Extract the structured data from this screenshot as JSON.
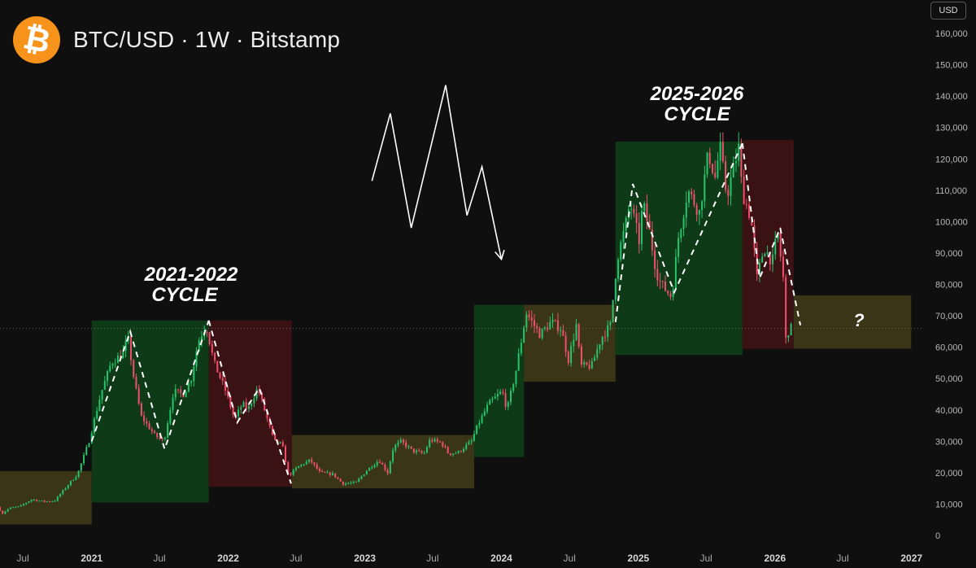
{
  "header": {
    "title": "BTC/USD · 1W · Bitstamp",
    "logo_symbol": "₿",
    "logo_icon": "bitcoin-icon",
    "currency_label": "USD"
  },
  "colors": {
    "background": "#0f0f0f",
    "bullish": "#26c46b",
    "bearish": "#f0506e",
    "bull_zone": "#0f3a18",
    "bear_zone": "#3a1214",
    "range_zone": "#3a3516",
    "brand": "#f7931a"
  },
  "chart_data": {
    "type": "candlestick",
    "title": "BTC/USD · 1W · Bitstamp",
    "y_axis": {
      "min": 0,
      "max": 160000,
      "currency": "USD",
      "ticks": [
        {
          "value": 160000,
          "label": "160,000"
        },
        {
          "value": 150000,
          "label": "150,000"
        },
        {
          "value": 140000,
          "label": "140,000"
        },
        {
          "value": 130000,
          "label": "130,000"
        },
        {
          "value": 120000,
          "label": "120,000"
        },
        {
          "value": 110000,
          "label": "110,000"
        },
        {
          "value": 100000,
          "label": "100,000"
        },
        {
          "value": 90000,
          "label": "90,000"
        },
        {
          "value": 80000,
          "label": "80,000"
        },
        {
          "value": 70000,
          "label": "70,000"
        },
        {
          "value": 60000,
          "label": "60,000"
        },
        {
          "value": 50000,
          "label": "50,000"
        },
        {
          "value": 40000,
          "label": "40,000"
        },
        {
          "value": 30000,
          "label": "30,000"
        },
        {
          "value": 20000,
          "label": "20,000"
        },
        {
          "value": 10000,
          "label": "10,000"
        },
        {
          "value": 0,
          "label": "0"
        }
      ]
    },
    "x_axis": {
      "min": "2020-05",
      "max": "2027-02",
      "ticks": [
        {
          "date": "2020-07",
          "label": "Jul"
        },
        {
          "date": "2021-01",
          "label": "2021"
        },
        {
          "date": "2021-07",
          "label": "Jul"
        },
        {
          "date": "2022-01",
          "label": "2022"
        },
        {
          "date": "2022-07",
          "label": "Jul"
        },
        {
          "date": "2023-01",
          "label": "2023"
        },
        {
          "date": "2023-07",
          "label": "Jul"
        },
        {
          "date": "2024-01",
          "label": "2024"
        },
        {
          "date": "2024-07",
          "label": "Jul"
        },
        {
          "date": "2025-01",
          "label": "2025"
        },
        {
          "date": "2025-07",
          "label": "Jul"
        },
        {
          "date": "2026-01",
          "label": "2026"
        },
        {
          "date": "2026-07",
          "label": "Jul"
        },
        {
          "date": "2027-01",
          "label": "2027"
        }
      ]
    },
    "price_path": [
      [
        "2020-05-01",
        9000
      ],
      [
        "2020-05-15",
        7000
      ],
      [
        "2020-06-01",
        8700
      ],
      [
        "2020-07-01",
        9300
      ],
      [
        "2020-08-01",
        11500
      ],
      [
        "2020-09-01",
        10800
      ],
      [
        "2020-10-01",
        11000
      ],
      [
        "2020-11-01",
        15500
      ],
      [
        "2020-12-01",
        19500
      ],
      [
        "2021-01-01",
        30000
      ],
      [
        "2021-02-01",
        45000
      ],
      [
        "2021-03-01",
        55000
      ],
      [
        "2021-04-01",
        58000
      ],
      [
        "2021-04-15",
        63000
      ],
      [
        "2021-05-01",
        50000
      ],
      [
        "2021-05-20",
        38000
      ],
      [
        "2021-06-01",
        36000
      ],
      [
        "2021-06-25",
        32000
      ],
      [
        "2021-07-20",
        30000
      ],
      [
        "2021-08-15",
        46000
      ],
      [
        "2021-09-10",
        45000
      ],
      [
        "2021-10-01",
        50000
      ],
      [
        "2021-10-20",
        62000
      ],
      [
        "2021-11-10",
        67000
      ],
      [
        "2021-12-01",
        55000
      ],
      [
        "2022-01-01",
        46000
      ],
      [
        "2022-01-25",
        37000
      ],
      [
        "2022-02-15",
        42000
      ],
      [
        "2022-03-01",
        40000
      ],
      [
        "2022-03-28",
        47000
      ],
      [
        "2022-04-15",
        40000
      ],
      [
        "2022-05-10",
        30000
      ],
      [
        "2022-06-01",
        29000
      ],
      [
        "2022-06-18",
        19000
      ],
      [
        "2022-07-15",
        22000
      ],
      [
        "2022-08-15",
        24000
      ],
      [
        "2022-09-10",
        20000
      ],
      [
        "2022-10-15",
        19500
      ],
      [
        "2022-11-10",
        16500
      ],
      [
        "2022-12-15",
        16800
      ],
      [
        "2023-01-15",
        21000
      ],
      [
        "2023-02-15",
        24000
      ],
      [
        "2023-03-10",
        20000
      ],
      [
        "2023-03-25",
        28000
      ],
      [
        "2023-04-15",
        30000
      ],
      [
        "2023-05-15",
        27000
      ],
      [
        "2023-06-15",
        26000
      ],
      [
        "2023-07-01",
        30500
      ],
      [
        "2023-08-01",
        29500
      ],
      [
        "2023-08-20",
        26000
      ],
      [
        "2023-09-15",
        26500
      ],
      [
        "2023-10-20",
        30000
      ],
      [
        "2023-11-05",
        35000
      ],
      [
        "2023-12-05",
        42000
      ],
      [
        "2024-01-10",
        46000
      ],
      [
        "2024-01-23",
        40000
      ],
      [
        "2024-02-15",
        52000
      ],
      [
        "2024-03-01",
        62000
      ],
      [
        "2024-03-14",
        71000
      ],
      [
        "2024-04-20",
        64000
      ],
      [
        "2024-05-20",
        68000
      ],
      [
        "2024-06-15",
        66000
      ],
      [
        "2024-07-05",
        56000
      ],
      [
        "2024-07-28",
        68000
      ],
      [
        "2024-08-05",
        54000
      ],
      [
        "2024-09-05",
        54000
      ],
      [
        "2024-10-01",
        63000
      ],
      [
        "2024-10-25",
        67000
      ],
      [
        "2024-11-12",
        88000
      ],
      [
        "2024-12-05",
        99000
      ],
      [
        "2024-12-17",
        106000
      ],
      [
        "2025-01-10",
        94000
      ],
      [
        "2025-01-20",
        106000
      ],
      [
        "2025-02-05",
        98000
      ],
      [
        "2025-02-25",
        84000
      ],
      [
        "2025-03-10",
        80000
      ],
      [
        "2025-04-07",
        76000
      ],
      [
        "2025-04-25",
        95000
      ],
      [
        "2025-05-20",
        110000
      ],
      [
        "2025-06-20",
        103000
      ],
      [
        "2025-07-14",
        122000
      ],
      [
        "2025-08-01",
        114000
      ],
      [
        "2025-08-14",
        124000
      ],
      [
        "2025-09-01",
        108000
      ],
      [
        "2025-10-06",
        125000
      ],
      [
        "2025-10-11",
        110000
      ],
      [
        "2025-11-05",
        101000
      ],
      [
        "2025-11-21",
        82000
      ],
      [
        "2025-12-10",
        92000
      ],
      [
        "2026-01-01",
        87000
      ],
      [
        "2026-01-15",
        97000
      ],
      [
        "2026-01-30",
        82000
      ],
      [
        "2026-02-05",
        62000
      ],
      [
        "2026-02-15",
        66000
      ]
    ],
    "cycle_zones": [
      {
        "kind": "bull",
        "start": "2021-01-01",
        "end": "2021-11-10",
        "low": 10500,
        "high": 68500
      },
      {
        "kind": "bear",
        "start": "2021-11-10",
        "end": "2022-06-20",
        "low": 15500,
        "high": 68500
      },
      {
        "kind": "range",
        "start": "2022-06-20",
        "end": "2023-10-20",
        "low": 15000,
        "high": 32000
      },
      {
        "kind": "range",
        "start": "2020-05-01",
        "end": "2021-01-01",
        "low": 3500,
        "high": 20500
      },
      {
        "kind": "bull",
        "start": "2023-10-20",
        "end": "2024-03-01",
        "low": 25000,
        "high": 73500
      },
      {
        "kind": "range",
        "start": "2024-03-01",
        "end": "2024-11-01",
        "low": 49000,
        "high": 73500
      },
      {
        "kind": "bull",
        "start": "2024-11-01",
        "end": "2025-10-06",
        "low": 57500,
        "high": 125500
      },
      {
        "kind": "bear",
        "start": "2025-10-06",
        "end": "2026-02-20",
        "low": 59500,
        "high": 126000
      },
      {
        "kind": "range",
        "start": "2026-02-20",
        "end": "2026-12-31",
        "low": 59500,
        "high": 76500
      }
    ],
    "dashed_paths": [
      [
        [
          "2021-01-01",
          30000
        ],
        [
          "2021-04-14",
          65000
        ],
        [
          "2021-07-15",
          27500
        ],
        [
          "2021-11-10",
          68500
        ]
      ],
      [
        [
          "2021-11-10",
          68500
        ],
        [
          "2022-01-25",
          36000
        ],
        [
          "2022-03-25",
          47000
        ],
        [
          "2022-06-18",
          16500
        ]
      ],
      [
        [
          "2024-11-01",
          68000
        ],
        [
          "2024-12-17",
          112000
        ],
        [
          "2025-04-07",
          77500
        ],
        [
          "2025-10-06",
          125000
        ]
      ],
      [
        [
          "2025-10-06",
          125000
        ],
        [
          "2025-11-21",
          82000
        ],
        [
          "2026-01-15",
          98000
        ],
        [
          "2026-03-10",
          67000
        ]
      ]
    ],
    "pattern_path": [
      [
        "2023-01-20",
        113000
      ],
      [
        "2023-03-10",
        134500
      ],
      [
        "2023-05-05",
        98000
      ],
      [
        "2023-08-05",
        143500
      ],
      [
        "2023-10-01",
        102000
      ],
      [
        "2023-11-10",
        117500
      ],
      [
        "2024-01-01",
        88000
      ]
    ],
    "current_price": 66000,
    "annotations": [
      {
        "id": "cycle1",
        "lines": [
          "2021-2022",
          "CYCLE"
        ]
      },
      {
        "id": "cycle2",
        "lines": [
          "2025-2026",
          "CYCLE"
        ]
      },
      {
        "id": "question",
        "lines": [
          "?"
        ]
      }
    ]
  }
}
